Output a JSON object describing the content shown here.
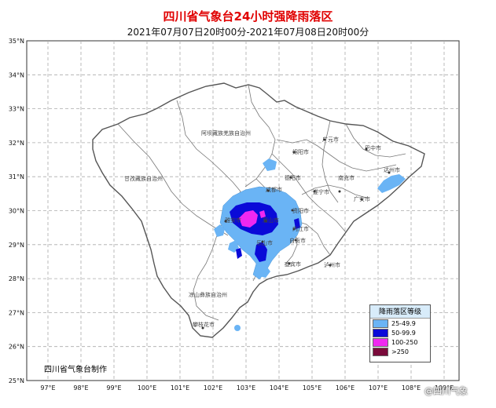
{
  "title": "四川省气象台24小时强降雨落区",
  "subtitle": "2021年07月07日20时00分-2021年07月08日20时00分",
  "credit": "四川省气象台制作",
  "watermark": "@四川气象",
  "axes": {
    "lat_labels": [
      "35°N",
      "34°N",
      "33°N",
      "32°N",
      "31°N",
      "30°N",
      "29°N",
      "28°N",
      "27°N",
      "26°N",
      "25°N"
    ],
    "lon_labels": [
      "97°E",
      "98°E",
      "99°E",
      "100°E",
      "101°E",
      "102°E",
      "103°E",
      "104°E",
      "105°E",
      "106°E",
      "107°E",
      "108°E",
      "109°E"
    ]
  },
  "legend": {
    "title": "降雨落区等级",
    "items": [
      {
        "label": "25-49.9",
        "color": "#6ab4f5"
      },
      {
        "label": "50-99.9",
        "color": "#0a0ad8"
      },
      {
        "label": "100-250",
        "color": "#f028f0"
      },
      {
        "label": ">250",
        "color": "#7a0a3a"
      }
    ]
  },
  "places": {
    "aba": "阿坝藏族羌族自治州",
    "ganzi": "甘孜藏族自治州",
    "liangshan": "凉山彝族自治州",
    "panzhihua": "攀枝花市",
    "guangyuan": "广元市",
    "bazhong": "巴中市",
    "mianyang": "绵阳市",
    "dazhou": "达州市",
    "deyang": "德阳市",
    "nanchong": "南充市",
    "chengdu": "成都市",
    "suining": "遂宁市",
    "guangan": "广安市",
    "ziyang": "资阳市",
    "yaan": "雅安市",
    "meishan": "眉山市",
    "neijiang": "内江市",
    "leshan": "乐山市",
    "zigong": "自贡市",
    "yibin": "宜宾市",
    "luzhou": "泸州市"
  },
  "colors": {
    "grid": "#aaaaaa",
    "border": "#666666",
    "province": "#555555"
  }
}
